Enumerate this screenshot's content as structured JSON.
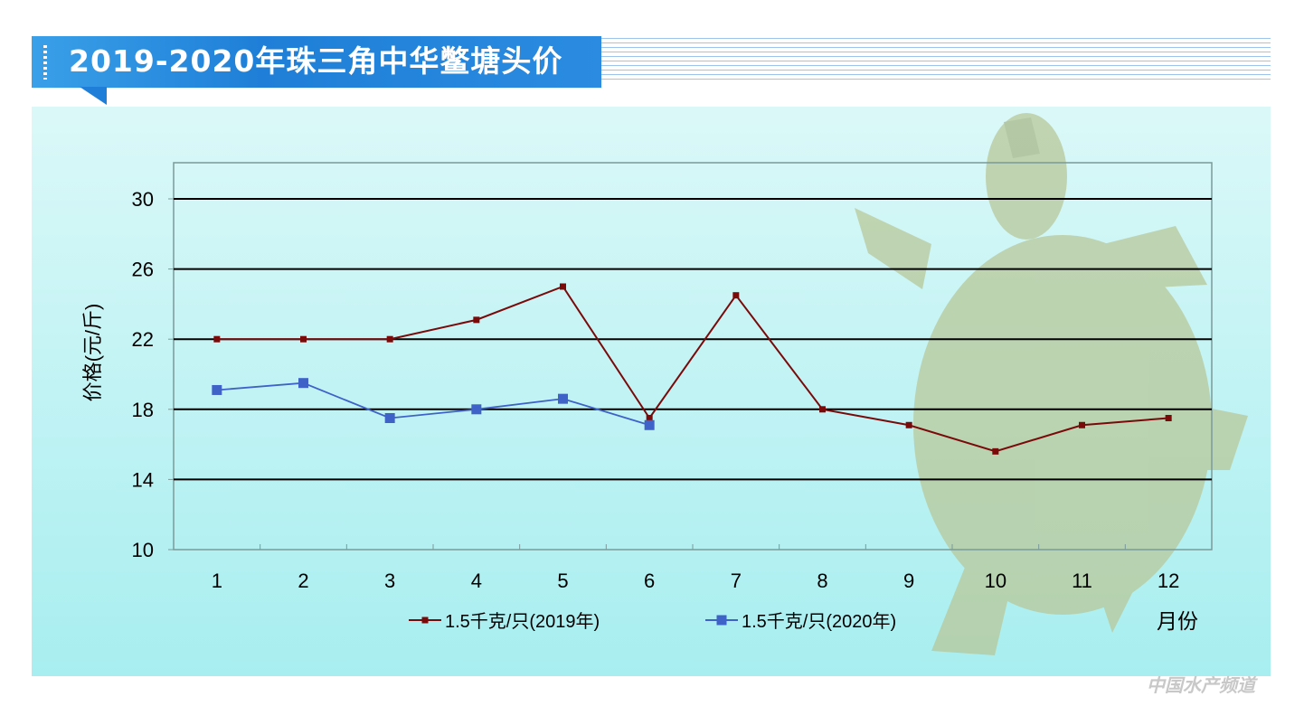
{
  "title": "2019-2020年珠三角中华鳖塘头价",
  "watermark": "中国水产频道",
  "chart_data": {
    "type": "line",
    "title": "2019-2020年珠三角中华鳖塘头价",
    "xlabel": "月份",
    "ylabel": "价格(元/斤)",
    "categories": [
      "1",
      "2",
      "3",
      "4",
      "5",
      "6",
      "7",
      "8",
      "9",
      "10",
      "11",
      "12"
    ],
    "ylim": [
      10,
      32
    ],
    "yticks": [
      10,
      14,
      18,
      22,
      26,
      30
    ],
    "grid": true,
    "legend_position": "bottom",
    "series": [
      {
        "name": "1.5千克/只(2019年)",
        "color": "#7a0a0a",
        "values": [
          22,
          22,
          22,
          23.1,
          25,
          17.5,
          24.5,
          18,
          17.1,
          15.6,
          17.1,
          17.5
        ]
      },
      {
        "name": "1.5千克/只(2020年)",
        "color": "#3f62c8",
        "values": [
          19.1,
          19.5,
          17.5,
          18,
          18.6,
          17.1,
          null,
          null,
          null,
          null,
          null,
          null
        ]
      }
    ]
  }
}
